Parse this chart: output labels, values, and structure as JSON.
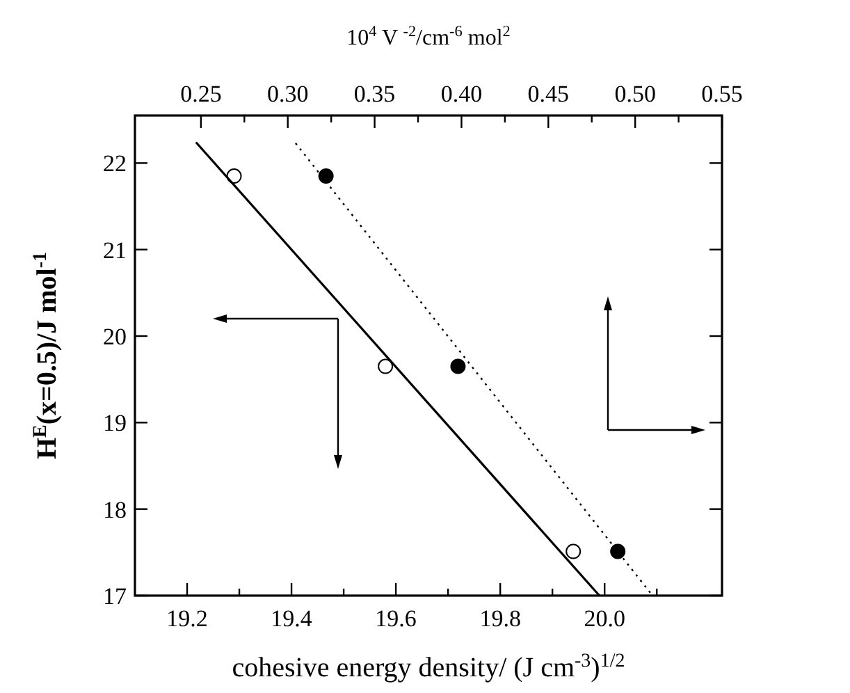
{
  "chart_data": {
    "type": "scatter",
    "xlabel": "cohesive energy density/ (J cm$^{-3}$)$^{1/2}$",
    "ylabel": "H$^{E}$(x=0.5)/J mol$^{-1}$",
    "x2label": "10$^{4}$ V $^{-2}$/cm$^{-6}$ mol$^{2}$",
    "xlim": [
      19.1,
      20.225
    ],
    "xticks": [
      19.2,
      {
        "value": 19.3,
        "label": null
      },
      19.4,
      {
        "value": 19.5,
        "label": null
      },
      19.6,
      {
        "value": 19.7,
        "label": null
      },
      19.8,
      {
        "value": 19.9,
        "label": null
      },
      {
        "value": 20.0,
        "label": "20.0"
      },
      {
        "value": 20.1,
        "label": null
      }
    ],
    "x2lim": [
      0.212,
      0.55
    ],
    "x2ticks": [
      0.25,
      {
        "value": 0.275,
        "label": null
      },
      {
        "value": 0.3,
        "label": "0.30"
      },
      {
        "value": 0.325,
        "label": null
      },
      0.35,
      {
        "value": 0.375,
        "label": null
      },
      {
        "value": 0.4,
        "label": "0.40"
      },
      {
        "value": 0.425,
        "label": null
      },
      0.45,
      {
        "value": 0.475,
        "label": null
      },
      {
        "value": 0.5,
        "label": "0.50"
      },
      {
        "value": 0.525,
        "label": null
      },
      0.55
    ],
    "ylim": [
      17,
      22.55
    ],
    "yticks": [
      17,
      18,
      19,
      20,
      21,
      22
    ],
    "grid": false,
    "series": [
      {
        "marker": "circle",
        "color": "#ffffff",
        "x": [
          19.29,
          19.58,
          19.94
        ],
        "values": [
          21.85,
          19.65,
          17.51
        ]
      },
      {
        "marker": "circle",
        "axis": "x2",
        "color": "#000000",
        "x": [
          0.322,
          0.398,
          0.49
        ],
        "values": [
          21.85,
          19.65,
          17.51
        ]
      },
      {
        "type": "line",
        "marker": "none",
        "line_style": "solid",
        "color": "#000000",
        "x": [
          19.217,
          19.99
        ],
        "values": [
          22.24,
          17
        ]
      },
      {
        "type": "line",
        "marker": "none",
        "line_style": "dotted",
        "axis": "x2",
        "color": "#000000",
        "x": [
          0.3045,
          0.51
        ],
        "values": [
          22.23,
          17
        ]
      }
    ]
  }
}
